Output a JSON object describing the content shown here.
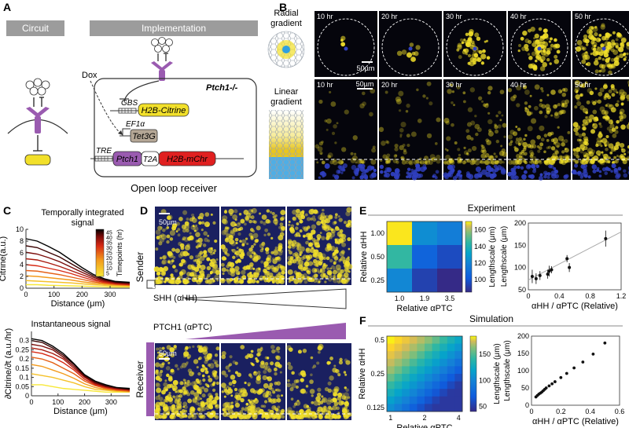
{
  "panelA": {
    "letter": "A",
    "circuit_title": "Circuit",
    "impl_title": "Implementation",
    "dox": "Dox",
    "genotype": "Ptch1-/-",
    "gbs": "GBS",
    "h2b_citrine": "H2B-Citrine",
    "ef1a": "EF1α",
    "tet3g": "Tet3G",
    "tre": "TRE",
    "ptch1": "Ptch1",
    "t2a": "T2A",
    "h2b_mchr": "H2B-mChr",
    "caption": "Open loop receiver"
  },
  "panelB": {
    "letter": "B",
    "radial_line1": "Radial",
    "radial_line2": "gradient",
    "linear_line1": "Linear",
    "linear_line2": "gradient",
    "radial_times": [
      "10 hr",
      "20 hr",
      "30 hr",
      "40 hr",
      "50 hr"
    ],
    "linear_times": [
      "10 hr",
      "20 hr",
      "30 hr",
      "40 hr",
      "50 hr"
    ],
    "radial_intensity": [
      0.02,
      0.06,
      0.35,
      0.6,
      0.85
    ],
    "linear_intensity": [
      0.05,
      0.15,
      0.35,
      0.6,
      0.85
    ],
    "scale": "50µm",
    "colors": {
      "yellow": "#f2e02a",
      "blue": "#3040c0",
      "background": "#05050c"
    }
  },
  "panelC": {
    "letter": "C",
    "top_title_line1": "Temporally integrated",
    "top_title_line2": "signal",
    "top_ylabel": "Citrine(a.u.)",
    "top_yticks": [
      "0",
      "2",
      "4",
      "6",
      "8",
      "10"
    ],
    "xticks": [
      "0",
      "100",
      "200",
      "300"
    ],
    "xlabel": "Distance (μm)",
    "colorbar_label": "Timepoints (hr)",
    "colorbar_ticks": [
      "45",
      "40",
      "35",
      "30",
      "25",
      "20",
      "15",
      "10",
      "5"
    ],
    "bottom_title": "Instantaneous signal",
    "bottom_ylabel": "∂Citrine/∂t (a.u./hr)",
    "bottom_yticks": [
      "0",
      "0.05",
      "0.1",
      "0.15",
      "0.2",
      "0.25",
      "0.3"
    ]
  },
  "panelD": {
    "letter": "D",
    "sender": "Sender",
    "shh": "SHH (αHH)",
    "ptch": "PTCH1 (αPTC)",
    "receiver": "Receiver",
    "scale": "50µm",
    "top_intensity": [
      0.55,
      0.75,
      0.9
    ],
    "bottom_intensity": [
      0.85,
      0.6,
      0.4
    ],
    "colors": {
      "purple": "#9a5bb0",
      "yellow": "#f2e02a",
      "navy": "#1a2060"
    }
  },
  "panelE": {
    "letter": "E",
    "header": "Experiment",
    "ylabel": "Relative αHH",
    "xlabel": "Relative αPTC",
    "yticks": [
      "1.00",
      "0.50",
      "0.25"
    ],
    "xticks": [
      "1.0",
      "1.9",
      "3.5"
    ],
    "cbar_label": "Lengthscale (μm)",
    "cbar_ticks": [
      "160",
      "140",
      "120",
      "100"
    ],
    "scatter_ylabel": "Lengthscale (μm)",
    "scatter_xlabel": "αHH / αPTC (Relative)",
    "scatter_yticks": [
      "50",
      "100",
      "150",
      "200"
    ],
    "scatter_xticks": [
      "0",
      "0.4",
      "0.8",
      "1.2"
    ]
  },
  "panelF": {
    "letter": "F",
    "header": "Simulation",
    "ylabel": "Relative αHH",
    "xlabel": "Relative αPTC",
    "yticks": [
      "0.5",
      "0.25",
      "0.125"
    ],
    "xticks": [
      "1",
      "2",
      "4"
    ],
    "cbar_label": "Lengthscale (μm)",
    "cbar_ticks": [
      "150",
      "100",
      "50"
    ],
    "scatter_ylabel": "Lengthscale (μm)",
    "scatter_xlabel": "αHH / αPTC (Relative)",
    "scatter_yticks": [
      "0",
      "50",
      "100",
      "150",
      "200"
    ],
    "scatter_xticks": [
      "0",
      "0.2",
      "0.4",
      "0.6"
    ]
  },
  "chart_data": [
    {
      "type": "line",
      "title": "Temporally integrated signal",
      "xlabel": "Distance (μm)",
      "ylabel": "Citrine(a.u.)",
      "xlim": [
        0,
        370
      ],
      "ylim": [
        0,
        10
      ],
      "x": [
        0,
        40,
        80,
        120,
        160,
        200,
        240,
        280,
        320,
        370
      ],
      "series": [
        {
          "name": "5 hr",
          "values": [
            0.6,
            0.6,
            0.5,
            0.45,
            0.4,
            0.35,
            0.3,
            0.25,
            0.2,
            0.2
          ]
        },
        {
          "name": "10 hr",
          "values": [
            1.3,
            1.2,
            1.1,
            1.0,
            0.9,
            0.75,
            0.6,
            0.5,
            0.4,
            0.35
          ]
        },
        {
          "name": "15 hr",
          "values": [
            2.1,
            2.0,
            1.8,
            1.6,
            1.4,
            1.1,
            0.85,
            0.7,
            0.55,
            0.45
          ]
        },
        {
          "name": "20 hr",
          "values": [
            3.0,
            2.9,
            2.6,
            2.3,
            1.9,
            1.5,
            1.1,
            0.85,
            0.65,
            0.55
          ]
        },
        {
          "name": "25 hr",
          "values": [
            4.0,
            3.8,
            3.4,
            3.0,
            2.5,
            1.9,
            1.35,
            1.0,
            0.75,
            0.6
          ]
        },
        {
          "name": "30 hr",
          "values": [
            5.0,
            4.8,
            4.3,
            3.7,
            3.0,
            2.3,
            1.6,
            1.15,
            0.85,
            0.7
          ]
        },
        {
          "name": "35 hr",
          "values": [
            6.1,
            5.8,
            5.2,
            4.5,
            3.6,
            2.7,
            1.85,
            1.3,
            0.95,
            0.8
          ]
        },
        {
          "name": "40 hr",
          "values": [
            7.2,
            6.9,
            6.1,
            5.3,
            4.2,
            3.1,
            2.1,
            1.45,
            1.05,
            0.9
          ]
        },
        {
          "name": "45 hr",
          "values": [
            8.4,
            8.0,
            7.1,
            6.1,
            4.8,
            3.5,
            2.35,
            1.6,
            1.15,
            1.0
          ]
        }
      ]
    },
    {
      "type": "line",
      "title": "Instantaneous signal",
      "xlabel": "Distance (μm)",
      "ylabel": "∂Citrine/∂t (a.u./hr)",
      "xlim": [
        0,
        370
      ],
      "ylim": [
        0,
        0.35
      ],
      "x": [
        0,
        40,
        80,
        120,
        160,
        200,
        240,
        280,
        320,
        370
      ],
      "series": [
        {
          "name": "5 hr",
          "values": [
            0.06,
            0.06,
            0.05,
            0.04,
            0.035,
            0.03,
            0.025,
            0.02,
            0.02,
            0.02
          ]
        },
        {
          "name": "10 hr",
          "values": [
            0.12,
            0.11,
            0.1,
            0.085,
            0.07,
            0.05,
            0.035,
            0.03,
            0.025,
            0.02
          ]
        },
        {
          "name": "15 hr",
          "values": [
            0.17,
            0.16,
            0.14,
            0.12,
            0.095,
            0.065,
            0.045,
            0.035,
            0.03,
            0.025
          ]
        },
        {
          "name": "20 hr",
          "values": [
            0.21,
            0.2,
            0.18,
            0.15,
            0.12,
            0.08,
            0.055,
            0.04,
            0.03,
            0.025
          ]
        },
        {
          "name": "25 hr",
          "values": [
            0.24,
            0.23,
            0.21,
            0.18,
            0.14,
            0.09,
            0.06,
            0.045,
            0.035,
            0.03
          ]
        },
        {
          "name": "30 hr",
          "values": [
            0.26,
            0.25,
            0.23,
            0.2,
            0.15,
            0.1,
            0.065,
            0.05,
            0.04,
            0.03
          ]
        },
        {
          "name": "35 hr",
          "values": [
            0.28,
            0.27,
            0.25,
            0.21,
            0.16,
            0.105,
            0.07,
            0.05,
            0.04,
            0.035
          ]
        },
        {
          "name": "40 hr",
          "values": [
            0.3,
            0.29,
            0.26,
            0.22,
            0.17,
            0.11,
            0.075,
            0.055,
            0.045,
            0.035
          ]
        },
        {
          "name": "45 hr",
          "values": [
            0.31,
            0.3,
            0.27,
            0.23,
            0.175,
            0.115,
            0.08,
            0.06,
            0.045,
            0.04
          ]
        }
      ]
    },
    {
      "type": "heatmap",
      "title": "Experiment",
      "xlabel": "Relative αPTC",
      "ylabel": "Relative αHH",
      "x": [
        "1.0",
        "1.9",
        "3.5"
      ],
      "y": [
        "1.00",
        "0.50",
        "0.25"
      ],
      "values": [
        [
          165,
          110,
          105
        ],
        [
          128,
          98,
          92
        ],
        [
          108,
          90,
          85
        ]
      ],
      "colorbar_range": [
        85,
        170
      ]
    },
    {
      "type": "scatter",
      "title": "Experiment",
      "xlabel": "αHH / αPTC (Relative)",
      "ylabel": "Lengthscale (μm)",
      "xlim": [
        0,
        1.2
      ],
      "ylim": [
        50,
        200
      ],
      "x": [
        0.05,
        0.1,
        0.15,
        0.25,
        0.27,
        0.3,
        0.5,
        0.53,
        1.0
      ],
      "y": [
        80,
        75,
        82,
        85,
        92,
        95,
        120,
        100,
        165
      ],
      "error": [
        15,
        12,
        10,
        10,
        12,
        8,
        8,
        10,
        18
      ],
      "fit_line": {
        "x": [
          0,
          1.2
        ],
        "y": [
          72,
          180
        ]
      }
    },
    {
      "type": "heatmap",
      "title": "Simulation",
      "xlabel": "Relative αPTC",
      "ylabel": "Relative αHH",
      "x": [
        "1",
        "2",
        "4"
      ],
      "y": [
        "0.5",
        "0.25",
        "0.125"
      ],
      "rows": 10,
      "cols": 10,
      "value_range": [
        45,
        180
      ],
      "colorbar_range": [
        40,
        185
      ]
    },
    {
      "type": "scatter",
      "title": "Simulation",
      "xlabel": "αHH / αPTC (Relative)",
      "ylabel": "Lengthscale (μm)",
      "xlim": [
        0,
        0.6
      ],
      "ylim": [
        0,
        200
      ],
      "x": [
        0.03,
        0.04,
        0.05,
        0.06,
        0.07,
        0.08,
        0.09,
        0.1,
        0.12,
        0.14,
        0.16,
        0.2,
        0.24,
        0.29,
        0.35,
        0.42,
        0.5
      ],
      "y": [
        24,
        28,
        32,
        35,
        38,
        42,
        46,
        50,
        56,
        62,
        68,
        80,
        92,
        108,
        125,
        148,
        180
      ]
    }
  ]
}
